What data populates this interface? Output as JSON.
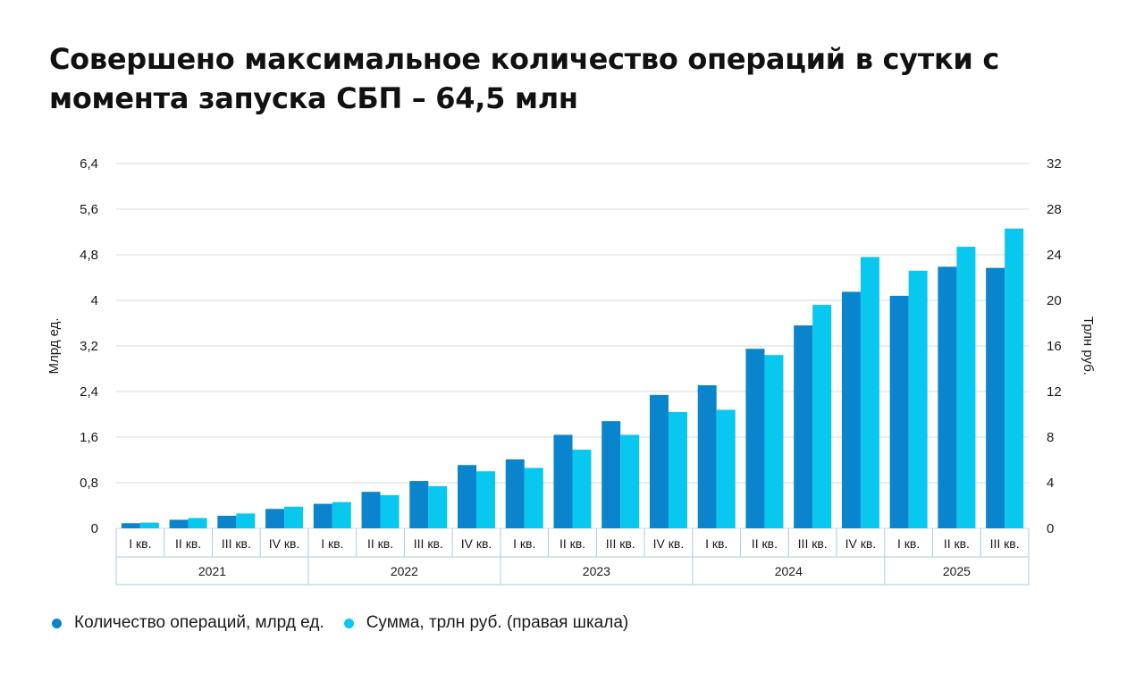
{
  "title": "Совершено максимальное количество операций в сутки с момента запуска СБП – 64,5 млн",
  "colors": {
    "ops": "#0a84cc",
    "sum": "#08c8ef",
    "grid": "#d5d9de",
    "axis_box": "#a9cbe6",
    "text": "#1a1a1a"
  },
  "chart_data": {
    "type": "bar",
    "ylabel_left": "Млрд ед.",
    "ylabel_right": "Трлн руб.",
    "left_axis": {
      "ylim": [
        0,
        6.4
      ],
      "ticks": [
        "0",
        "0,8",
        "1,6",
        "2,4",
        "3,2",
        "4",
        "4,8",
        "5,6",
        "6,4"
      ]
    },
    "right_axis": {
      "ylim": [
        0,
        32
      ],
      "ticks": [
        "0",
        "4",
        "8",
        "12",
        "16",
        "20",
        "24",
        "28",
        "32"
      ]
    },
    "grid": true,
    "legend_position": "bottom-left",
    "categories": [
      "I кв.",
      "II кв.",
      "III кв.",
      "IV кв.",
      "I кв.",
      "II кв.",
      "III кв.",
      "IV кв.",
      "I кв.",
      "II кв.",
      "III кв.",
      "IV кв.",
      "I кв.",
      "II кв.",
      "III кв.",
      "IV кв.",
      "I кв.",
      "II кв.",
      "III кв."
    ],
    "groups": [
      {
        "label": "2021",
        "count": 4
      },
      {
        "label": "2022",
        "count": 4
      },
      {
        "label": "2023",
        "count": 4
      },
      {
        "label": "2024",
        "count": 4
      },
      {
        "label": "2025",
        "count": 3
      }
    ],
    "series": [
      {
        "name": "Количество операций, млрд ед.",
        "axis": "left",
        "values": [
          0.09,
          0.15,
          0.22,
          0.34,
          0.43,
          0.64,
          0.83,
          1.11,
          1.21,
          1.64,
          1.88,
          2.34,
          2.51,
          3.15,
          3.56,
          4.15,
          4.08,
          4.59,
          4.57
        ]
      },
      {
        "name": "Сумма, трлн руб. (правая шкала)",
        "axis": "right",
        "values": [
          0.5,
          0.9,
          1.3,
          1.9,
          2.3,
          2.9,
          3.7,
          5.0,
          5.3,
          6.9,
          8.2,
          10.2,
          10.4,
          15.2,
          19.6,
          23.8,
          22.6,
          24.7,
          26.3
        ]
      }
    ]
  }
}
